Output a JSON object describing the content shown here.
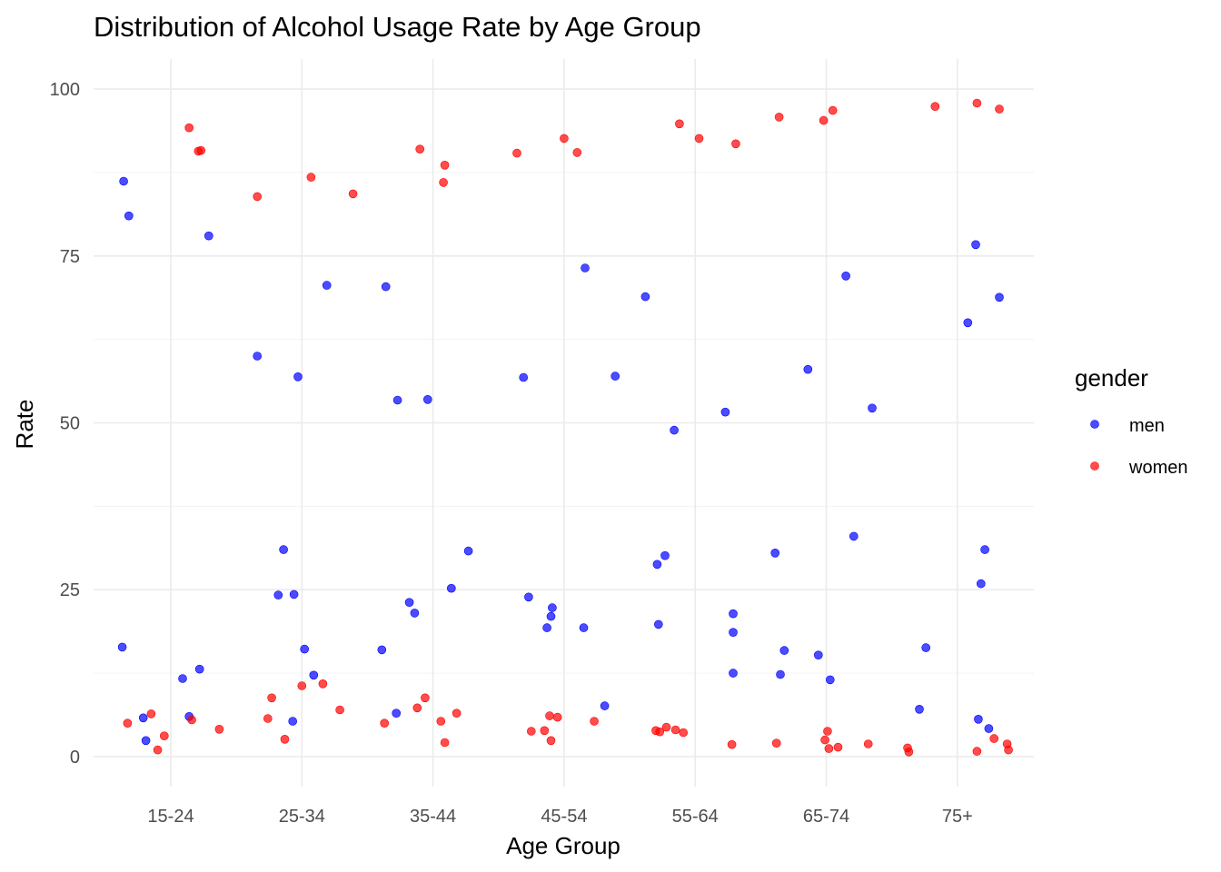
{
  "chart_data": {
    "type": "scatter",
    "title": "Distribution of Alcohol Usage Rate by Age Group",
    "xlabel": "Age Group",
    "ylabel": "Rate",
    "categories": [
      "15-24",
      "25-34",
      "35-44",
      "45-54",
      "55-64",
      "65-74",
      "75+"
    ],
    "ylim": [
      -4.5,
      104.5
    ],
    "yticks": [
      0,
      25,
      50,
      75,
      100
    ],
    "grid": true,
    "legend": {
      "title": "gender",
      "position": "right",
      "entries": [
        {
          "label": "men",
          "color": "#0000ff"
        },
        {
          "label": "women",
          "color": "#ff0000"
        }
      ]
    },
    "series": [
      {
        "name": "men",
        "color": "#0000ff",
        "points": [
          {
            "x": "15-24",
            "offset": -0.36,
            "y": 86.2
          },
          {
            "x": "15-24",
            "offset": -0.32,
            "y": 81.0
          },
          {
            "x": "15-24",
            "offset": 0.29,
            "y": 78.0
          },
          {
            "x": "15-24",
            "offset": -0.37,
            "y": 16.4
          },
          {
            "x": "15-24",
            "offset": 0.09,
            "y": 11.7
          },
          {
            "x": "15-24",
            "offset": 0.22,
            "y": 13.1
          },
          {
            "x": "15-24",
            "offset": -0.21,
            "y": 5.8
          },
          {
            "x": "15-24",
            "offset": 0.14,
            "y": 6.0
          },
          {
            "x": "15-24",
            "offset": -0.19,
            "y": 2.4
          },
          {
            "x": "25-34",
            "offset": 0.19,
            "y": 70.6
          },
          {
            "x": "25-34",
            "offset": -0.34,
            "y": 60.0
          },
          {
            "x": "25-34",
            "offset": -0.03,
            "y": 56.9
          },
          {
            "x": "25-34",
            "offset": -0.14,
            "y": 31.0
          },
          {
            "x": "25-34",
            "offset": -0.18,
            "y": 24.2
          },
          {
            "x": "25-34",
            "offset": -0.06,
            "y": 24.3
          },
          {
            "x": "25-34",
            "offset": 0.02,
            "y": 16.1
          },
          {
            "x": "25-34",
            "offset": 0.09,
            "y": 12.2
          },
          {
            "x": "25-34",
            "offset": -0.07,
            "y": 5.3
          },
          {
            "x": "35-44",
            "offset": -0.36,
            "y": 70.4
          },
          {
            "x": "35-44",
            "offset": -0.27,
            "y": 53.4
          },
          {
            "x": "35-44",
            "offset": -0.04,
            "y": 53.5
          },
          {
            "x": "35-44",
            "offset": 0.27,
            "y": 30.8
          },
          {
            "x": "35-44",
            "offset": 0.14,
            "y": 25.2
          },
          {
            "x": "35-44",
            "offset": -0.18,
            "y": 23.1
          },
          {
            "x": "35-44",
            "offset": -0.14,
            "y": 21.5
          },
          {
            "x": "35-44",
            "offset": -0.39,
            "y": 16.0
          },
          {
            "x": "35-44",
            "offset": -0.28,
            "y": 6.5
          },
          {
            "x": "45-54",
            "offset": 0.16,
            "y": 73.2
          },
          {
            "x": "45-54",
            "offset": -0.31,
            "y": 56.8
          },
          {
            "x": "45-54",
            "offset": 0.39,
            "y": 57.0
          },
          {
            "x": "45-54",
            "offset": -0.27,
            "y": 23.9
          },
          {
            "x": "45-54",
            "offset": -0.09,
            "y": 22.3
          },
          {
            "x": "45-54",
            "offset": -0.1,
            "y": 21.0
          },
          {
            "x": "45-54",
            "offset": -0.13,
            "y": 19.3
          },
          {
            "x": "45-54",
            "offset": 0.15,
            "y": 19.3
          },
          {
            "x": "45-54",
            "offset": 0.31,
            "y": 7.6
          },
          {
            "x": "55-64",
            "offset": -0.38,
            "y": 68.9
          },
          {
            "x": "55-64",
            "offset": -0.16,
            "y": 48.9
          },
          {
            "x": "55-64",
            "offset": 0.23,
            "y": 51.6
          },
          {
            "x": "55-64",
            "offset": -0.23,
            "y": 30.1
          },
          {
            "x": "55-64",
            "offset": -0.29,
            "y": 28.8
          },
          {
            "x": "55-64",
            "offset": 0.29,
            "y": 21.4
          },
          {
            "x": "55-64",
            "offset": -0.28,
            "y": 19.8
          },
          {
            "x": "55-64",
            "offset": 0.29,
            "y": 18.6
          },
          {
            "x": "55-64",
            "offset": 0.29,
            "y": 12.5
          },
          {
            "x": "65-74",
            "offset": 0.15,
            "y": 72.0
          },
          {
            "x": "65-74",
            "offset": -0.14,
            "y": 58.0
          },
          {
            "x": "65-74",
            "offset": 0.35,
            "y": 52.2
          },
          {
            "x": "65-74",
            "offset": 0.21,
            "y": 33.0
          },
          {
            "x": "65-74",
            "offset": -0.39,
            "y": 30.5
          },
          {
            "x": "65-74",
            "offset": -0.32,
            "y": 15.9
          },
          {
            "x": "65-74",
            "offset": -0.06,
            "y": 15.2
          },
          {
            "x": "65-74",
            "offset": -0.35,
            "y": 12.3
          },
          {
            "x": "65-74",
            "offset": 0.03,
            "y": 11.5
          },
          {
            "x": "75+",
            "offset": 0.14,
            "y": 76.7
          },
          {
            "x": "75+",
            "offset": 0.32,
            "y": 68.8
          },
          {
            "x": "75+",
            "offset": 0.08,
            "y": 65.0
          },
          {
            "x": "75+",
            "offset": 0.21,
            "y": 31.0
          },
          {
            "x": "75+",
            "offset": 0.18,
            "y": 25.9
          },
          {
            "x": "75+",
            "offset": -0.24,
            "y": 16.3
          },
          {
            "x": "75+",
            "offset": -0.29,
            "y": 7.1
          },
          {
            "x": "75+",
            "offset": 0.16,
            "y": 5.6
          },
          {
            "x": "75+",
            "offset": 0.24,
            "y": 4.2
          }
        ]
      },
      {
        "name": "women",
        "color": "#ff0000",
        "points": [
          {
            "x": "15-24",
            "offset": 0.14,
            "y": 94.2
          },
          {
            "x": "15-24",
            "offset": 0.21,
            "y": 90.7
          },
          {
            "x": "15-24",
            "offset": 0.23,
            "y": 90.8
          },
          {
            "x": "15-24",
            "offset": -0.33,
            "y": 5.0
          },
          {
            "x": "15-24",
            "offset": -0.15,
            "y": 6.4
          },
          {
            "x": "15-24",
            "offset": 0.16,
            "y": 5.5
          },
          {
            "x": "15-24",
            "offset": -0.05,
            "y": 3.1
          },
          {
            "x": "15-24",
            "offset": -0.1,
            "y": 1.0
          },
          {
            "x": "15-24",
            "offset": 0.37,
            "y": 4.1
          },
          {
            "x": "25-34",
            "offset": -0.34,
            "y": 83.9
          },
          {
            "x": "25-34",
            "offset": 0.07,
            "y": 86.8
          },
          {
            "x": "25-34",
            "offset": 0.39,
            "y": 84.3
          },
          {
            "x": "25-34",
            "offset": -0.23,
            "y": 8.8
          },
          {
            "x": "25-34",
            "offset": 0.0,
            "y": 10.6
          },
          {
            "x": "25-34",
            "offset": 0.16,
            "y": 10.9
          },
          {
            "x": "25-34",
            "offset": 0.29,
            "y": 7.0
          },
          {
            "x": "25-34",
            "offset": -0.26,
            "y": 5.7
          },
          {
            "x": "25-34",
            "offset": -0.13,
            "y": 2.6
          },
          {
            "x": "35-44",
            "offset": -0.1,
            "y": 91.0
          },
          {
            "x": "35-44",
            "offset": 0.09,
            "y": 88.6
          },
          {
            "x": "35-44",
            "offset": 0.08,
            "y": 86.0
          },
          {
            "x": "35-44",
            "offset": -0.12,
            "y": 7.3
          },
          {
            "x": "35-44",
            "offset": -0.06,
            "y": 8.8
          },
          {
            "x": "35-44",
            "offset": 0.18,
            "y": 6.5
          },
          {
            "x": "35-44",
            "offset": 0.06,
            "y": 5.3
          },
          {
            "x": "35-44",
            "offset": -0.37,
            "y": 5.0
          },
          {
            "x": "35-44",
            "offset": 0.09,
            "y": 2.1
          },
          {
            "x": "45-54",
            "offset": -0.36,
            "y": 90.4
          },
          {
            "x": "45-54",
            "offset": 0.0,
            "y": 92.6
          },
          {
            "x": "45-54",
            "offset": 0.1,
            "y": 90.5
          },
          {
            "x": "45-54",
            "offset": -0.25,
            "y": 3.8
          },
          {
            "x": "45-54",
            "offset": -0.15,
            "y": 3.9
          },
          {
            "x": "45-54",
            "offset": -0.11,
            "y": 6.1
          },
          {
            "x": "45-54",
            "offset": -0.05,
            "y": 5.9
          },
          {
            "x": "45-54",
            "offset": -0.1,
            "y": 2.4
          },
          {
            "x": "45-54",
            "offset": 0.23,
            "y": 5.3
          },
          {
            "x": "55-64",
            "offset": -0.12,
            "y": 94.8
          },
          {
            "x": "55-64",
            "offset": 0.03,
            "y": 92.6
          },
          {
            "x": "55-64",
            "offset": 0.31,
            "y": 91.8
          },
          {
            "x": "55-64",
            "offset": -0.3,
            "y": 3.9
          },
          {
            "x": "55-64",
            "offset": -0.27,
            "y": 3.7
          },
          {
            "x": "55-64",
            "offset": -0.22,
            "y": 4.4
          },
          {
            "x": "55-64",
            "offset": -0.15,
            "y": 4.0
          },
          {
            "x": "55-64",
            "offset": -0.09,
            "y": 3.6
          },
          {
            "x": "55-64",
            "offset": 0.28,
            "y": 1.8
          },
          {
            "x": "65-74",
            "offset": -0.36,
            "y": 95.8
          },
          {
            "x": "65-74",
            "offset": -0.02,
            "y": 95.3
          },
          {
            "x": "65-74",
            "offset": 0.05,
            "y": 96.8
          },
          {
            "x": "65-74",
            "offset": -0.38,
            "y": 2.0
          },
          {
            "x": "65-74",
            "offset": -0.01,
            "y": 2.5
          },
          {
            "x": "65-74",
            "offset": 0.01,
            "y": 3.8
          },
          {
            "x": "65-74",
            "offset": 0.02,
            "y": 1.2
          },
          {
            "x": "65-74",
            "offset": 0.09,
            "y": 1.4
          },
          {
            "x": "65-74",
            "offset": 0.32,
            "y": 1.9
          },
          {
            "x": "75+",
            "offset": -0.17,
            "y": 97.4
          },
          {
            "x": "75+",
            "offset": 0.15,
            "y": 97.9
          },
          {
            "x": "75+",
            "offset": 0.32,
            "y": 97.0
          },
          {
            "x": "75+",
            "offset": -0.38,
            "y": 1.3
          },
          {
            "x": "75+",
            "offset": -0.37,
            "y": 0.7
          },
          {
            "x": "75+",
            "offset": 0.15,
            "y": 0.8
          },
          {
            "x": "75+",
            "offset": 0.28,
            "y": 2.7
          },
          {
            "x": "75+",
            "offset": 0.38,
            "y": 1.9
          },
          {
            "x": "75+",
            "offset": 0.39,
            "y": 1.0
          }
        ]
      }
    ]
  }
}
